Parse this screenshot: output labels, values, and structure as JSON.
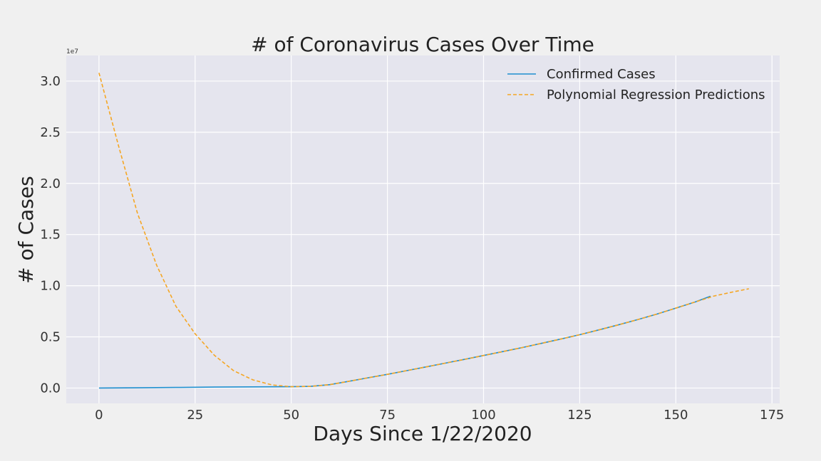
{
  "chart_data": {
    "type": "line",
    "title": "# of Coronavirus Cases Over Time",
    "xlabel": "Days Since 1/22/2020",
    "ylabel": "# of Cases",
    "y_offset_label": "1e7",
    "xlim": [
      -8.5,
      177
    ],
    "ylim": [
      -0.15,
      3.25
    ],
    "y_scale_note": "values in units of 1e7",
    "x_ticks": [
      0,
      25,
      50,
      75,
      100,
      125,
      150,
      175
    ],
    "x_tick_labels": [
      "0",
      "25",
      "50",
      "75",
      "100",
      "125",
      "150",
      "175"
    ],
    "y_ticks": [
      0.0,
      0.5,
      1.0,
      1.5,
      2.0,
      2.5,
      3.0
    ],
    "y_tick_labels": [
      "0.0",
      "0.5",
      "1.0",
      "1.5",
      "2.0",
      "2.5",
      "3.0"
    ],
    "grid": true,
    "legend_position": "top-right",
    "series": [
      {
        "name": "Confirmed Cases",
        "color": "#1f8fcf",
        "style": "solid",
        "x": [
          0,
          10,
          20,
          30,
          40,
          50,
          55,
          60,
          65,
          70,
          75,
          80,
          85,
          90,
          95,
          100,
          105,
          110,
          115,
          120,
          125,
          130,
          135,
          140,
          145,
          150,
          155,
          159
        ],
        "y": [
          0.0,
          0.002,
          0.006,
          0.009,
          0.011,
          0.013,
          0.016,
          0.033,
          0.066,
          0.1,
          0.134,
          0.17,
          0.206,
          0.243,
          0.28,
          0.318,
          0.356,
          0.395,
          0.436,
          0.478,
          0.521,
          0.568,
          0.617,
          0.668,
          0.722,
          0.781,
          0.841,
          0.897
        ]
      },
      {
        "name": "Polynomial Regression Predictions",
        "color": "#f5a623",
        "style": "dashed",
        "x": [
          0,
          5,
          10,
          15,
          20,
          25,
          30,
          35,
          40,
          45,
          50,
          55,
          60,
          65,
          70,
          75,
          80,
          85,
          90,
          95,
          100,
          105,
          110,
          115,
          120,
          125,
          130,
          135,
          140,
          145,
          150,
          155,
          160,
          165,
          169
        ],
        "y": [
          3.08,
          2.38,
          1.71,
          1.2,
          0.8,
          0.53,
          0.32,
          0.17,
          0.08,
          0.03,
          0.013,
          0.016,
          0.033,
          0.066,
          0.1,
          0.134,
          0.17,
          0.206,
          0.243,
          0.28,
          0.318,
          0.356,
          0.395,
          0.436,
          0.478,
          0.521,
          0.568,
          0.617,
          0.668,
          0.722,
          0.781,
          0.841,
          0.9,
          0.94,
          0.97
        ]
      }
    ]
  }
}
